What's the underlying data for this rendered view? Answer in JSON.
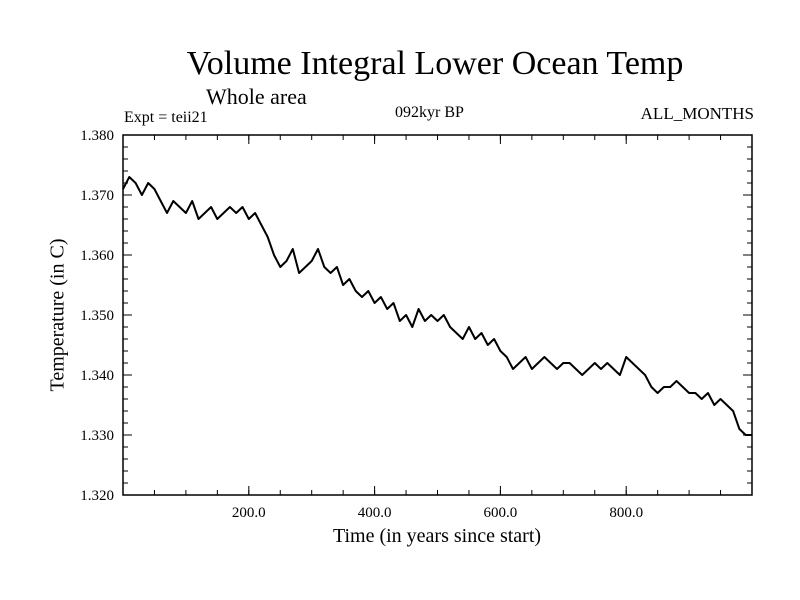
{
  "labels": {
    "title": "Volume Integral Lower Ocean Temp",
    "subtitle": "Whole area",
    "expt": "Expt = teii21",
    "period": "092kyr BP",
    "months": "ALL_MONTHS"
  },
  "chart_data": {
    "type": "line",
    "title": "Volume Integral Lower Ocean Temp",
    "subtitle": "Whole area",
    "xlabel": "Time (in years since start)",
    "ylabel": "Temperature (in C)",
    "xlim": [
      0,
      1000
    ],
    "ylim": [
      1.32,
      1.38
    ],
    "xticks": [
      200,
      400,
      600,
      800
    ],
    "xtick_labels": [
      "200.0",
      "400.0",
      "600.0",
      "800.0"
    ],
    "yticks": [
      1.32,
      1.33,
      1.34,
      1.35,
      1.36,
      1.37,
      1.38
    ],
    "ytick_labels": [
      "1.320",
      "1.330",
      "1.340",
      "1.350",
      "1.360",
      "1.370",
      "1.380"
    ],
    "grid": false,
    "line_color": "#000000",
    "series": [
      {
        "x": [
          0,
          10,
          20,
          30,
          40,
          50,
          60,
          70,
          80,
          90,
          100,
          110,
          120,
          130,
          140,
          150,
          160,
          170,
          180,
          190,
          200,
          210,
          220,
          230,
          240,
          250,
          260,
          270,
          280,
          290,
          300,
          310,
          320,
          330,
          340,
          350,
          360,
          370,
          380,
          390,
          400,
          410,
          420,
          430,
          440,
          450,
          460,
          470,
          480,
          490,
          500,
          510,
          520,
          530,
          540,
          550,
          560,
          570,
          580,
          590,
          600,
          610,
          620,
          630,
          640,
          650,
          660,
          670,
          680,
          690,
          700,
          710,
          720,
          730,
          740,
          750,
          760,
          770,
          780,
          790,
          800,
          810,
          820,
          830,
          840,
          850,
          860,
          870,
          880,
          890,
          900,
          910,
          920,
          930,
          940,
          950,
          960,
          970,
          980,
          990,
          1000
        ],
        "values": [
          1.371,
          1.373,
          1.372,
          1.37,
          1.372,
          1.371,
          1.369,
          1.367,
          1.369,
          1.368,
          1.367,
          1.369,
          1.366,
          1.367,
          1.368,
          1.366,
          1.367,
          1.368,
          1.367,
          1.368,
          1.366,
          1.367,
          1.365,
          1.363,
          1.36,
          1.358,
          1.359,
          1.361,
          1.357,
          1.358,
          1.359,
          1.361,
          1.358,
          1.357,
          1.358,
          1.355,
          1.356,
          1.354,
          1.353,
          1.354,
          1.352,
          1.353,
          1.351,
          1.352,
          1.349,
          1.35,
          1.348,
          1.351,
          1.349,
          1.35,
          1.349,
          1.35,
          1.348,
          1.347,
          1.346,
          1.348,
          1.346,
          1.347,
          1.345,
          1.346,
          1.344,
          1.343,
          1.341,
          1.342,
          1.343,
          1.341,
          1.342,
          1.343,
          1.342,
          1.341,
          1.342,
          1.342,
          1.341,
          1.34,
          1.341,
          1.342,
          1.341,
          1.342,
          1.341,
          1.34,
          1.343,
          1.342,
          1.341,
          1.34,
          1.338,
          1.337,
          1.338,
          1.338,
          1.339,
          1.338,
          1.337,
          1.337,
          1.336,
          1.337,
          1.335,
          1.336,
          1.335,
          1.334,
          1.331,
          1.33,
          1.33
        ]
      }
    ]
  }
}
